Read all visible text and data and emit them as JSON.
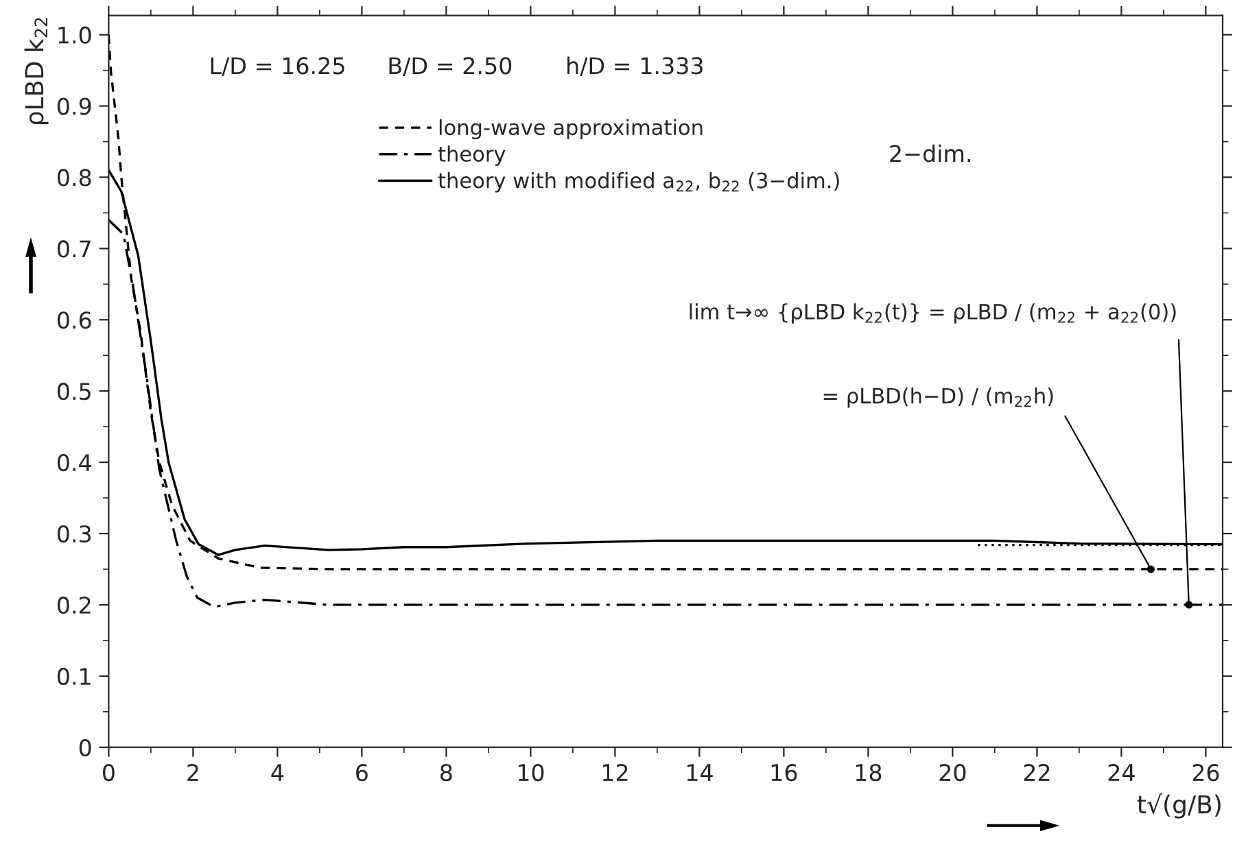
{
  "chart_data": {
    "type": "line",
    "xlabel": "t√(g/B)",
    "ylabel": "ρLBD k$_{22}$",
    "xlim": [
      0,
      26.4
    ],
    "ylim": [
      0,
      1.027
    ],
    "xticks": [
      0,
      2,
      4,
      6,
      8,
      10,
      12,
      14,
      16,
      18,
      20,
      22,
      24,
      26
    ],
    "yticks": [
      0,
      {
        "value": 0.1,
        "label": "0.1"
      },
      {
        "value": 0.2,
        "label": "0.2"
      },
      {
        "value": 0.3,
        "label": "0.3"
      },
      {
        "value": 0.4,
        "label": "0.4"
      },
      {
        "value": 0.5,
        "label": "0.5"
      },
      {
        "value": 0.6,
        "label": "0.6"
      },
      {
        "value": 0.7,
        "label": "0.7"
      },
      {
        "value": 0.8,
        "label": "0.8"
      },
      {
        "value": 0.9,
        "label": "0.9"
      },
      {
        "value": 1.0,
        "label": "1.0"
      }
    ],
    "grid": false,
    "legend": "top",
    "marker": "none",
    "series": [
      {
        "name": "long-wave approximation",
        "color": "#000000",
        "line_style": "dashed",
        "x": [
          0,
          0.05,
          0.23,
          0.3,
          0.53,
          0.75,
          1.0,
          1.2,
          1.5,
          1.93,
          2.6,
          3.6,
          5.2,
          10,
          15,
          20,
          26.4
        ],
        "values": [
          1.0,
          0.95,
          0.855,
          0.8,
          0.66,
          0.585,
          0.47,
          0.4,
          0.34,
          0.29,
          0.265,
          0.252,
          0.25,
          0.25,
          0.25,
          0.25,
          0.25
        ]
      },
      {
        "name": "theory",
        "color": "#000000",
        "line_style": "dashdot",
        "x": [
          0,
          0.35,
          0.57,
          0.9,
          1.2,
          1.6,
          1.85,
          2.1,
          2.5,
          3.0,
          3.7,
          5.2,
          10,
          15,
          20,
          26.4
        ],
        "values": [
          0.74,
          0.72,
          0.65,
          0.52,
          0.39,
          0.29,
          0.24,
          0.21,
          0.197,
          0.203,
          0.207,
          0.2,
          0.2,
          0.2,
          0.2,
          0.2
        ]
      },
      {
        "name": "theory with modified a$_{22}$, b$_{22}$ (3−dim.)",
        "color": "#000000",
        "line_style": "solid",
        "x": [
          0,
          0.3,
          0.7,
          1.0,
          1.25,
          1.42,
          1.8,
          2.13,
          2.6,
          3.0,
          3.7,
          5.2,
          6,
          7,
          8,
          10,
          13,
          21,
          23,
          26.4
        ],
        "values": [
          0.81,
          0.78,
          0.69,
          0.57,
          0.46,
          0.4,
          0.32,
          0.285,
          0.27,
          0.277,
          0.283,
          0.277,
          0.278,
          0.281,
          0.281,
          0.286,
          0.29,
          0.29,
          0.286,
          0.285
        ]
      },
      {
        "color": "#000000",
        "line_style": "dotted",
        "x": [
          20.6,
          26.4
        ],
        "values": [
          0.284,
          0.284
        ]
      }
    ],
    "annotations": [
      "L/D = 16.25",
      "B/D = 2.50",
      "h/D = 1.333",
      "2−dim.",
      {
        "text": "lim t→∞ {ρLBD k$_{22}$(t)} = ρLBD / (m$_{22}$ + a$_{22}$(0))",
        "x": 25.6,
        "y": 0.2
      },
      {
        "text": "= ρLBD(h−D) / (m$_{22}$h)",
        "x": 24.7,
        "y": 0.25
      }
    ]
  }
}
